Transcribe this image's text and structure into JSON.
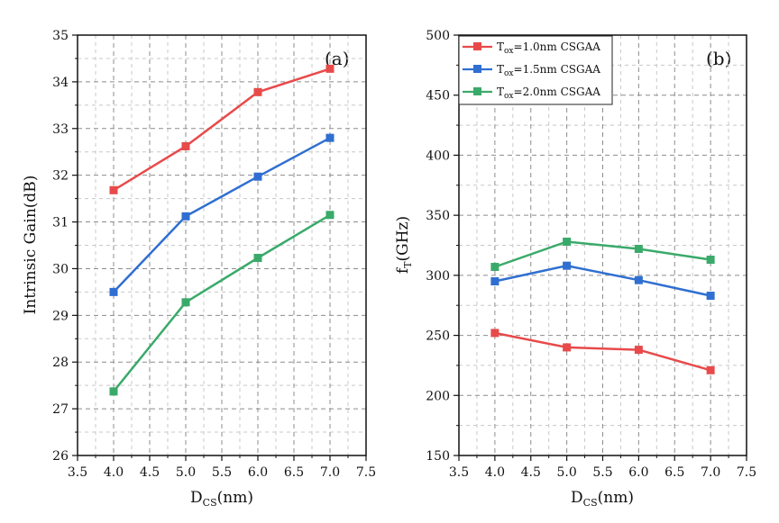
{
  "chart_data": [
    {
      "type": "line",
      "panel_label": "(a)",
      "xlabel": {
        "main": "D",
        "sub": "CS",
        "rest": "(nm)"
      },
      "ylabel": "Intrinsic Gain(dB)",
      "xlim": [
        3.5,
        7.5
      ],
      "ylim": [
        26,
        35
      ],
      "xticks": [
        "3.5",
        "4.0",
        "4.5",
        "5.0",
        "5.5",
        "6.0",
        "6.5",
        "7.0",
        "7.5"
      ],
      "yticks": [
        "26",
        "27",
        "28",
        "29",
        "30",
        "31",
        "32",
        "33",
        "34",
        "35"
      ],
      "grid": true,
      "x": [
        4.0,
        5.0,
        6.0,
        7.0
      ],
      "series": [
        {
          "color": "#e84a4a",
          "values": [
            31.68,
            32.62,
            33.78,
            34.28
          ]
        },
        {
          "color": "#2f6fd1",
          "values": [
            29.5,
            31.12,
            31.97,
            32.8
          ]
        },
        {
          "color": "#3aaa6a",
          "values": [
            27.37,
            29.28,
            30.23,
            31.15
          ]
        }
      ]
    },
    {
      "type": "line",
      "panel_label": "(b)",
      "xlabel": {
        "main": "D",
        "sub": "CS",
        "rest": "(nm)"
      },
      "ylabel": {
        "main": "f",
        "sub": "T",
        "rest": "(GHz)"
      },
      "xlim": [
        3.5,
        7.5
      ],
      "ylim": [
        150,
        500
      ],
      "xticks": [
        "3.5",
        "4.0",
        "4.5",
        "5.0",
        "5.5",
        "6.0",
        "6.5",
        "7.0",
        "7.5"
      ],
      "yticks": [
        "150",
        "200",
        "250",
        "300",
        "350",
        "400",
        "450",
        "500"
      ],
      "grid": true,
      "legend_position": "top-left",
      "x": [
        4.0,
        5.0,
        6.0,
        7.0
      ],
      "series": [
        {
          "legend": {
            "main": "T",
            "sub": "ox",
            "rest": "=1.0nm CSGAA"
          },
          "color": "#e84a4a",
          "values": [
            252,
            240,
            238,
            221
          ]
        },
        {
          "legend": {
            "main": "T",
            "sub": "ox",
            "rest": "=1.5nm CSGAA"
          },
          "color": "#2f6fd1",
          "values": [
            295,
            308,
            296,
            283
          ]
        },
        {
          "legend": {
            "main": "T",
            "sub": "ox",
            "rest": "=2.0nm CSGAA"
          },
          "color": "#3aaa6a",
          "values": [
            307,
            328,
            322,
            313
          ]
        }
      ]
    }
  ]
}
